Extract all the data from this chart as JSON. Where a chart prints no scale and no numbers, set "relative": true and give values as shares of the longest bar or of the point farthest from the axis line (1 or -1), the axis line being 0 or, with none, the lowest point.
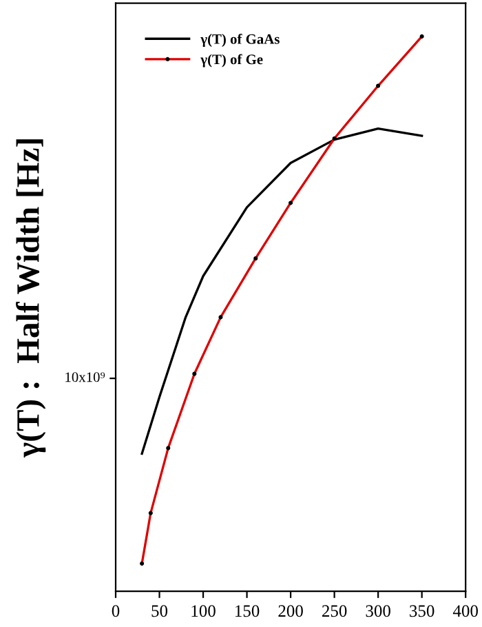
{
  "chart_data": {
    "type": "line",
    "ylabel": "γ(T) :  Half Width [Hz]",
    "relative": true,
    "xlim": [
      0,
      400
    ],
    "xticks": [
      0,
      50,
      100,
      150,
      200,
      250,
      300,
      350,
      400
    ],
    "legend": "top left",
    "grid": false,
    "annotations": [
      "10x10⁹"
    ],
    "series": [
      {
        "name": "γ(T) of GaAs",
        "color": "#000000",
        "marker": "none",
        "x": [
          30,
          50,
          80,
          100,
          150,
          200,
          250,
          300,
          350
        ],
        "values": [
          0.248,
          0.35,
          0.494,
          0.568,
          0.692,
          0.772,
          0.814,
          0.834,
          0.821
        ]
      },
      {
        "name": "γ(T) of Ge",
        "color": "#e00000",
        "marker": "circle",
        "x": [
          30,
          40,
          60,
          90,
          120,
          160,
          200,
          250,
          300,
          350
        ],
        "values": [
          0.05,
          0.141,
          0.258,
          0.392,
          0.494,
          0.6,
          0.7,
          0.816,
          0.911,
          1.0
        ]
      }
    ]
  }
}
